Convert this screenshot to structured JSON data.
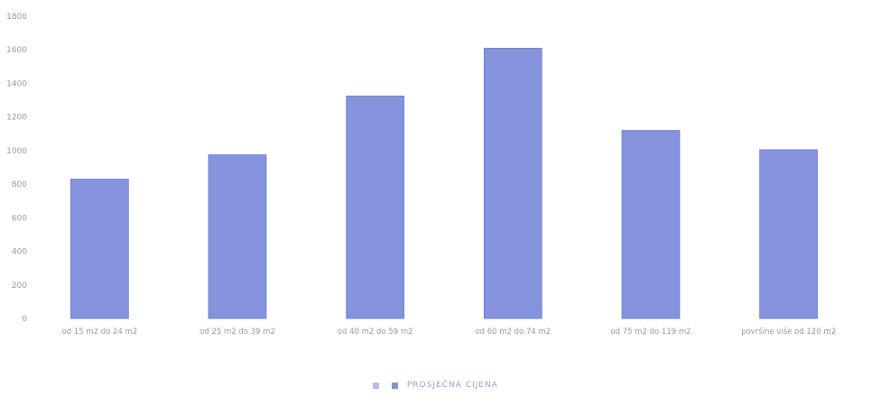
{
  "chart_data": {
    "type": "bar",
    "categories": [
      "od 15 m2 do 24 m2",
      "od 25 m2 do 39 m2",
      "od 40 m2 do 59 m2",
      "od 60 m2 do 74 m2",
      "od 75 m2 do 119 m2",
      "površine više od 120 m2"
    ],
    "series": [
      {
        "name": "PROSJEČNA CIJENA",
        "values": [
          830,
          975,
          1325,
          1610,
          1120,
          1005
        ],
        "color": "#8593dd"
      }
    ],
    "ylim": [
      0,
      1800
    ],
    "yticks": [
      0,
      200,
      400,
      600,
      800,
      1000,
      1200,
      1400,
      1600,
      1800
    ],
    "grid": false,
    "legend": "bottom-center"
  }
}
